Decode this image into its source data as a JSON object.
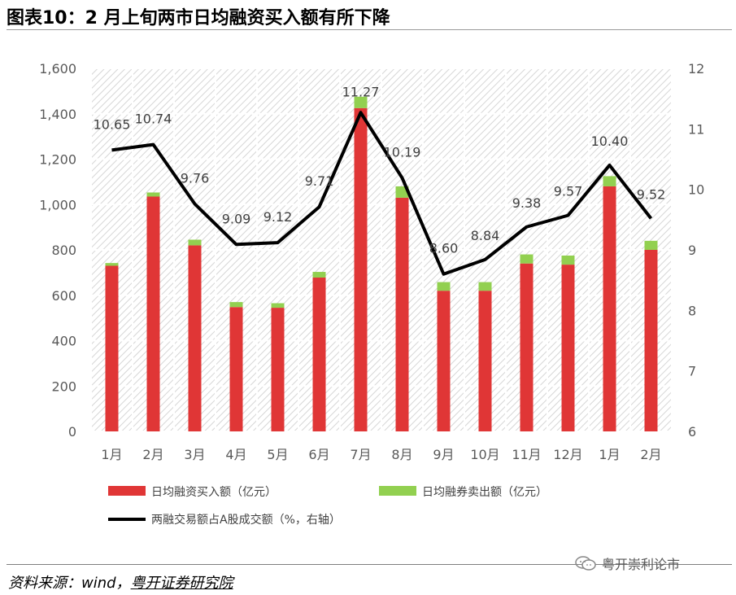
{
  "header": {
    "title": "图表10：2 月上旬两市日均融资买入额有所下降"
  },
  "chart_data": {
    "type": "bar",
    "categories": [
      "1月",
      "2月",
      "3月",
      "4月",
      "5月",
      "6月",
      "7月",
      "8月",
      "9月",
      "10月",
      "11月",
      "12月",
      "1月",
      "2月"
    ],
    "series": [
      {
        "name": "日均融资买入额（亿元）",
        "type": "bar",
        "stack": "main",
        "axis": "left",
        "color": "#e03636",
        "values": [
          730,
          1035,
          820,
          548,
          545,
          678,
          1425,
          1030,
          620,
          620,
          740,
          735,
          1080,
          800
        ]
      },
      {
        "name": "日均融券卖出额（亿元）",
        "type": "bar",
        "stack": "main",
        "axis": "left",
        "color": "#92d050",
        "values": [
          12,
          18,
          25,
          22,
          20,
          25,
          50,
          50,
          38,
          38,
          40,
          40,
          45,
          40
        ]
      },
      {
        "name": "两融交易额占A股成交额（%，右轴）",
        "type": "line",
        "axis": "right",
        "color": "#000000",
        "values": [
          10.65,
          10.74,
          9.76,
          9.09,
          9.12,
          9.71,
          11.27,
          10.19,
          8.6,
          8.84,
          9.38,
          9.57,
          10.4,
          9.52
        ],
        "labels": [
          "10.65",
          "10.74",
          "9.76",
          "9.09",
          "9.12",
          "9.71",
          "11.27",
          "10.19",
          "8.60",
          "8.84",
          "9.38",
          "9.57",
          "10.40",
          "9.52"
        ]
      }
    ],
    "left_axis": {
      "min": 0,
      "max": 1600,
      "ticks": [
        0,
        200,
        400,
        600,
        800,
        1000,
        1200,
        1400,
        1600
      ],
      "tick_labels": [
        "0",
        "200",
        "400",
        "600",
        "800",
        "1,000",
        "1,200",
        "1,400",
        "1,600"
      ]
    },
    "right_axis": {
      "min": 6,
      "max": 12,
      "ticks": [
        6,
        7,
        8,
        9,
        10,
        11,
        12
      ],
      "tick_labels": [
        "6",
        "7",
        "8",
        "9",
        "10",
        "11",
        "12"
      ]
    },
    "xlabel": "",
    "ylabel": "",
    "y2label": "",
    "grid": true,
    "legend_position": "bottom"
  },
  "footer": {
    "source_prefix": "资料来源：wind，",
    "source_org": "粤开证券研究院",
    "watermark": "粤开崇利论市"
  }
}
